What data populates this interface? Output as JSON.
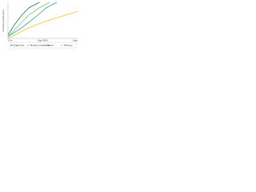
{
  "chart_data": {
    "type": "line",
    "ylabel": "Cooling requirement",
    "x": [
      0,
      10,
      20,
      30,
      45
    ],
    "xlim": [
      0,
      100
    ],
    "ylim": [
      0,
      100
    ],
    "xticks": [
      {
        "value": 0,
        "label": "0 W"
      },
      {
        "value": 50,
        "label": "Max 50%"
      },
      {
        "value": 100,
        "label": "Max"
      }
    ],
    "series": [
      {
        "name": "Edge/Hub",
        "color": "#1f7a4a",
        "x": [
          0,
          10,
          20,
          30,
          45
        ],
        "values": [
          10,
          40,
          65,
          85,
          100
        ]
      },
      {
        "name": "Medium-sized rack",
        "color": "#7cc86b",
        "x": [
          0,
          15,
          30,
          45,
          60
        ],
        "values": [
          5,
          35,
          65,
          85,
          100
        ]
      },
      {
        "name": "Server",
        "color": "#2aa8a8",
        "x": [
          0,
          20,
          40,
          55,
          70
        ],
        "values": [
          5,
          30,
          60,
          85,
          100
        ]
      },
      {
        "name": "Tabletop",
        "color": "#f0c419",
        "x": [
          0,
          25,
          50,
          75,
          100
        ],
        "values": [
          0,
          25,
          45,
          60,
          75
        ]
      }
    ]
  }
}
